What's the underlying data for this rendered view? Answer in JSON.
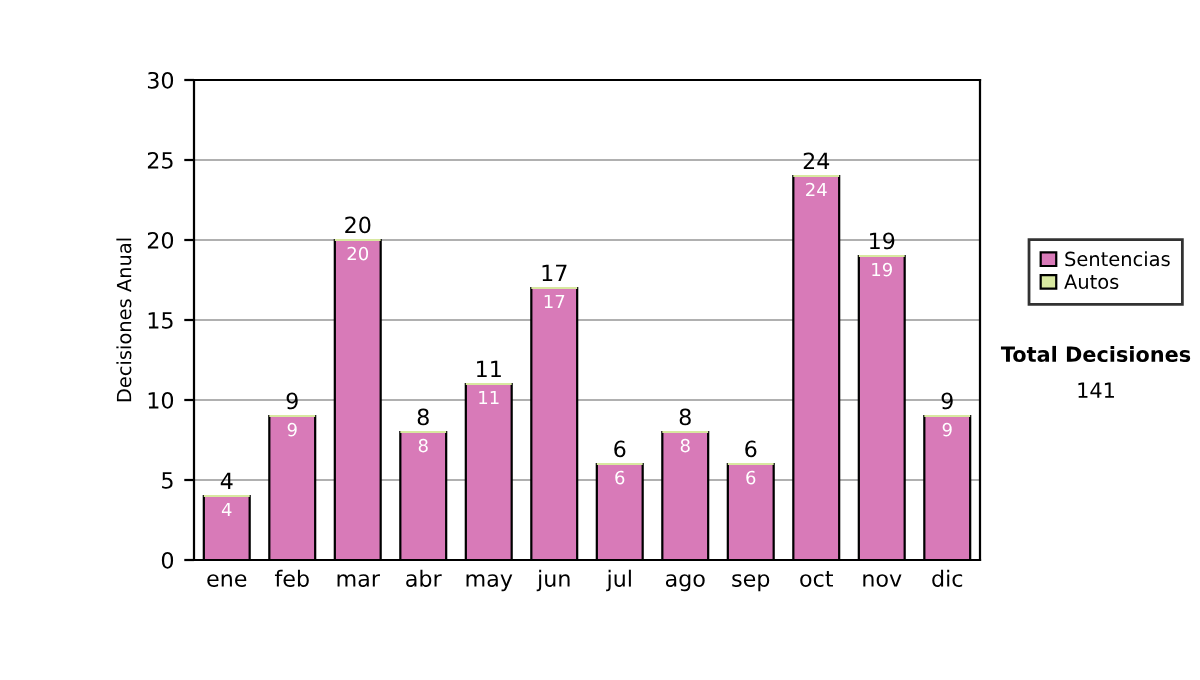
{
  "chart_data": {
    "type": "bar",
    "ylabel": "Decisiones Anual",
    "categories": [
      "ene",
      "feb",
      "mar",
      "abr",
      "may",
      "jun",
      "jul",
      "ago",
      "sep",
      "oct",
      "nov",
      "dic"
    ],
    "series": [
      {
        "name": "Sentencias",
        "color": "#d87ab8",
        "values": [
          4,
          9,
          20,
          8,
          11,
          17,
          6,
          8,
          6,
          24,
          19,
          9
        ],
        "value_labels": [
          "4",
          "9",
          "20",
          "8",
          "11",
          "17",
          "6",
          "8",
          "6",
          "24",
          "19",
          "9"
        ]
      },
      {
        "name": "Autos",
        "color": "#d8e8a0",
        "values": [
          0,
          0,
          0,
          0,
          0,
          0,
          0,
          0,
          0,
          0,
          0,
          0
        ],
        "value_labels": [
          null,
          null,
          null,
          null,
          null,
          null,
          null,
          null,
          null,
          null,
          null,
          null
        ]
      }
    ],
    "stacked": true,
    "totals": [
      "4",
      "9",
      "20",
      "8",
      "11",
      "17",
      "6",
      "8",
      "6",
      "24",
      "19",
      "9"
    ],
    "ylim": [
      0,
      30
    ],
    "yticks": [
      0,
      5,
      10,
      15,
      20,
      25,
      30
    ],
    "grid": "y",
    "legend": "right",
    "annotations": [
      "Total Decisiones",
      "141"
    ]
  }
}
